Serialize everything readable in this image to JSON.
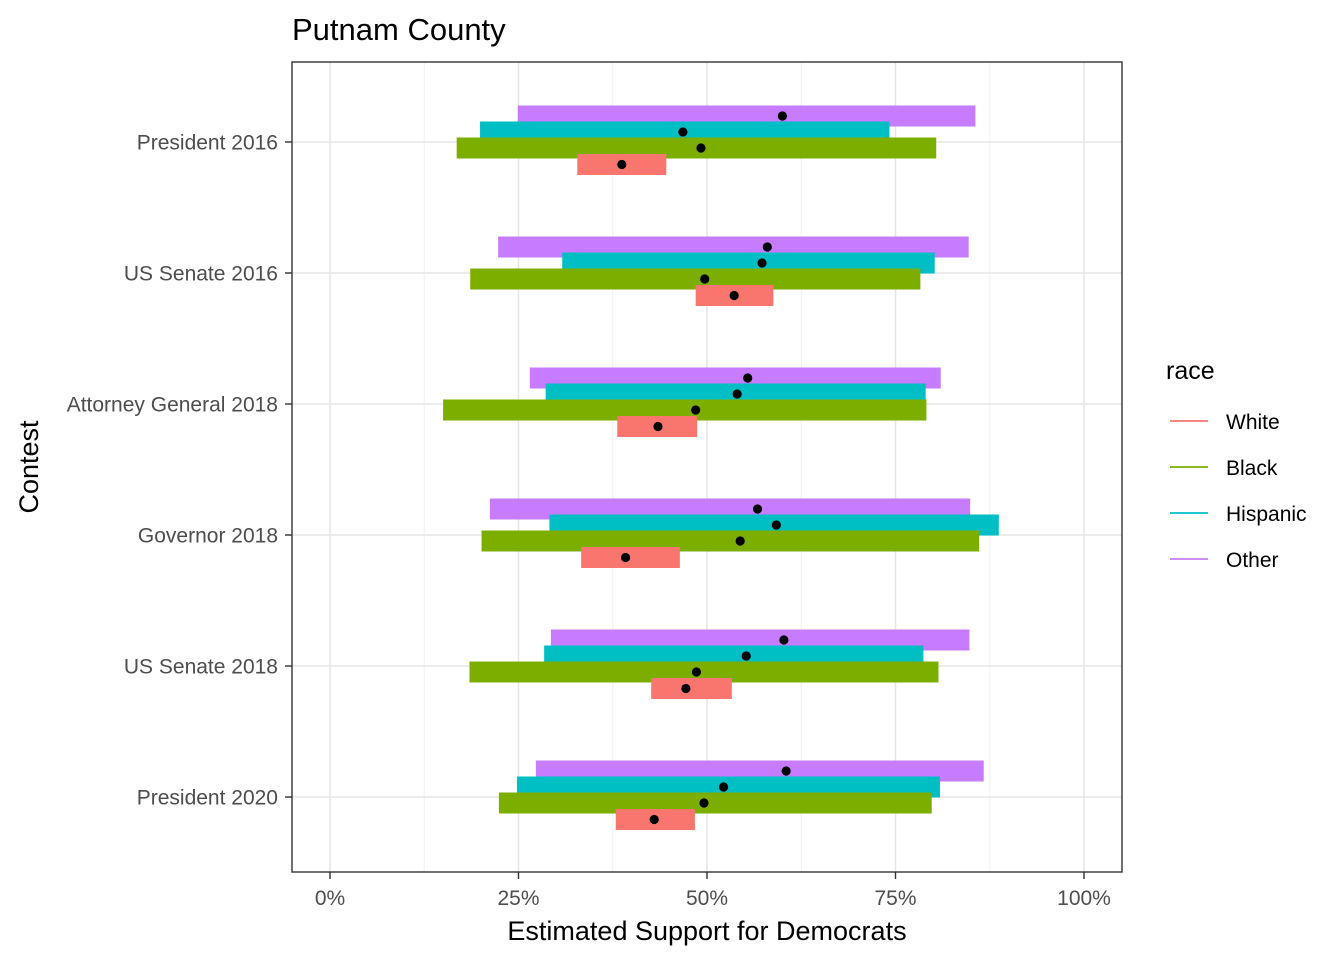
{
  "chart_data": {
    "type": "bar",
    "subtype": "horizontal interval bars with point estimates",
    "title": "Putnam County",
    "xlabel": "Estimated Support for Democrats",
    "ylabel": "Contest",
    "xlim": [
      0,
      100
    ],
    "x_unit": "percent",
    "xticks": [
      0,
      25,
      50,
      75,
      100
    ],
    "xtick_labels": [
      "0%",
      "25%",
      "50%",
      "75%",
      "100%"
    ],
    "grid": true,
    "legend": {
      "title": "race",
      "position": "right"
    },
    "categories": [
      "President 2016",
      "US Senate 2016",
      "Attorney General 2018",
      "Governor 2018",
      "US Senate 2018",
      "President 2020"
    ],
    "series": [
      {
        "name": "White",
        "color": "#F8766D",
        "low": [
          32.8,
          48.5,
          38.1,
          33.3,
          42.6,
          37.9
        ],
        "high": [
          44.6,
          58.8,
          48.7,
          46.4,
          53.3,
          48.4
        ],
        "estimate": [
          38.7,
          53.6,
          43.5,
          39.2,
          47.2,
          43.0
        ]
      },
      {
        "name": "Black",
        "color": "#7CAE00",
        "low": [
          16.8,
          18.6,
          15.0,
          20.1,
          18.5,
          22.4
        ],
        "high": [
          80.4,
          78.3,
          79.1,
          86.1,
          80.7,
          79.8
        ],
        "estimate": [
          49.2,
          49.7,
          48.5,
          54.4,
          48.6,
          49.6
        ]
      },
      {
        "name": "Hispanic",
        "color": "#00BFC4",
        "low": [
          19.9,
          30.8,
          28.6,
          29.1,
          28.4,
          24.8
        ],
        "high": [
          74.2,
          80.2,
          79.0,
          88.7,
          78.7,
          80.9
        ],
        "estimate": [
          46.8,
          57.3,
          54.0,
          59.2,
          55.2,
          52.2
        ]
      },
      {
        "name": "Other",
        "color": "#C77CFF",
        "low": [
          24.9,
          22.3,
          26.5,
          21.2,
          29.3,
          27.3
        ],
        "high": [
          85.6,
          84.7,
          81.0,
          84.9,
          84.8,
          86.7
        ],
        "estimate": [
          60.0,
          58.0,
          55.4,
          56.7,
          60.2,
          60.5
        ]
      }
    ]
  }
}
